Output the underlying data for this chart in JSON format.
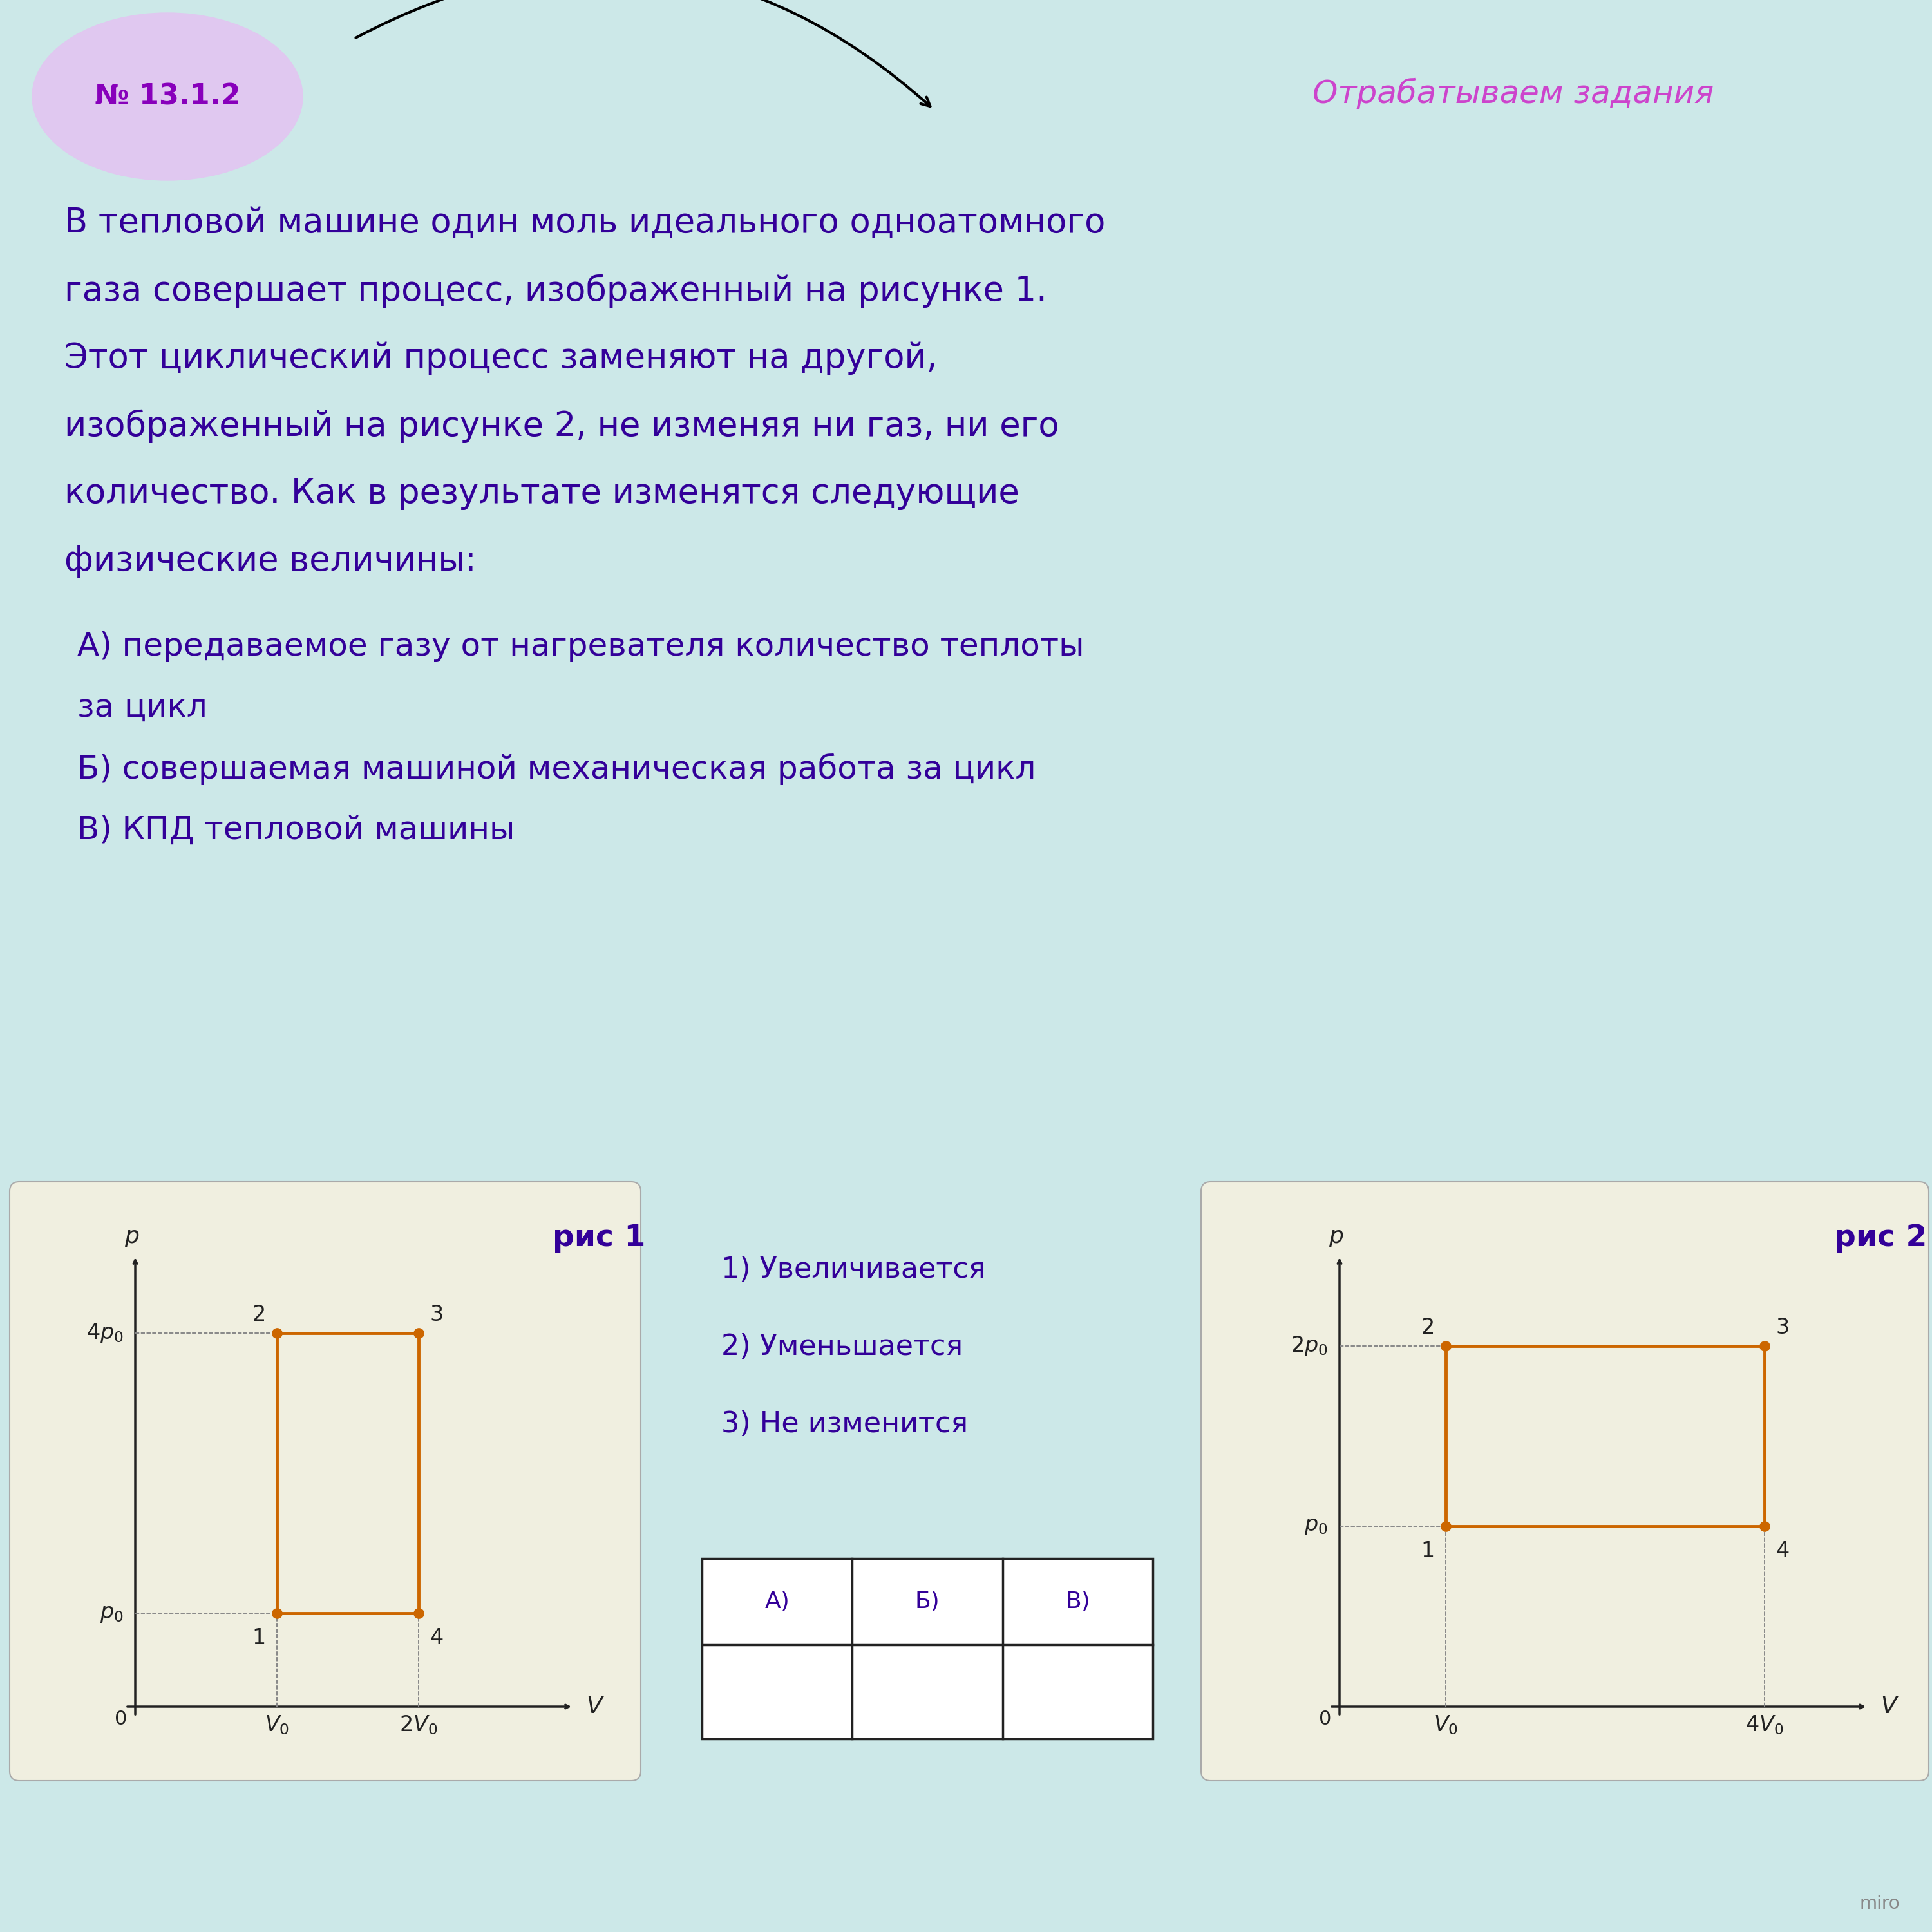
{
  "bg_color": "#cce8e8",
  "title_box_color": "#e0c8f0",
  "title_text": "№ 13.1.2",
  "title_text_color": "#8800bb",
  "header_text": "Отрабатываем задания",
  "header_text_color": "#cc44cc",
  "main_text_color": "#330099",
  "question_A": "А) передаваемое газу от нагревателя количество теплоты",
  "question_A2": "за цикл",
  "question_B": "Б) совершаемая машиной механическая работа за цикл",
  "question_V": "В) КПД тепловой машины",
  "answers": [
    "1) Увеличивается",
    "2) Уменьшается",
    "3) Не изменится"
  ],
  "graph_line_color": "#cc6600",
  "graph_dot_color": "#cc6600",
  "graph_bg_color": "#f0efe0",
  "graph_axis_color": "#222222",
  "table_header": [
    "А)",
    "Б)",
    "В)"
  ],
  "fig1_title": "рис 1",
  "fig2_title": "рис 2",
  "miro_text": "miro",
  "main_lines": [
    "В тепловой машине один моль идеального одноатомного",
    "газа совершает процесс, изображенный на рисунке 1.",
    "Этот циклический процесс заменяют на другой,",
    "изображенный на рисунке 2, не изменяя ни газ, ни его",
    "количество. Как в результате изменятся следующие",
    "физические величины:"
  ]
}
